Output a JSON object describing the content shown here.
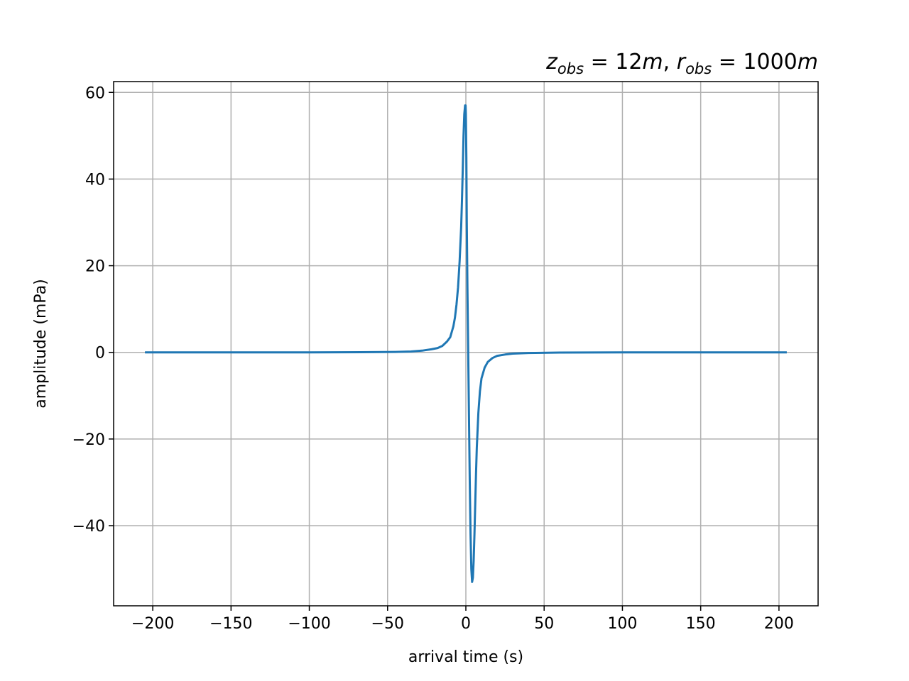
{
  "chart_data": {
    "type": "line",
    "title": {
      "parts": [
        {
          "text": "z",
          "italic": true
        },
        {
          "text": "obs",
          "italic": true,
          "sub": true
        },
        {
          "text": " = 12",
          "italic": false
        },
        {
          "text": "m",
          "italic": true
        },
        {
          "text": ", ",
          "italic": false
        },
        {
          "text": "r",
          "italic": true
        },
        {
          "text": "obs",
          "italic": true,
          "sub": true
        },
        {
          "text": " = 1000",
          "italic": false
        },
        {
          "text": "m",
          "italic": true
        }
      ]
    },
    "xlabel": "arrival time (s)",
    "ylabel": "amplitude (mPa)",
    "xlim": [
      -225,
      225
    ],
    "ylim": [
      -58.5,
      62.5
    ],
    "xticks": [
      -200,
      -150,
      -100,
      -50,
      0,
      50,
      100,
      150,
      200
    ],
    "xtick_labels": [
      "−200",
      "−150",
      "−100",
      "−50",
      "0",
      "50",
      "100",
      "150",
      "200"
    ],
    "yticks": [
      -40,
      -20,
      0,
      20,
      40,
      60
    ],
    "ytick_labels": [
      "−40",
      "−20",
      "0",
      "20",
      "40",
      "60"
    ],
    "grid": true,
    "line_color": "#1f77b4",
    "series": [
      {
        "x": [
          -205,
          -150,
          -100,
          -60,
          -45,
          -35,
          -28,
          -22,
          -18,
          -15,
          -12,
          -10,
          -8,
          -7,
          -6,
          -5,
          -4,
          -3,
          -2.5,
          -2,
          -1.5,
          -1,
          -0.5,
          -0.2,
          0,
          0.3,
          0.6,
          1,
          1.5,
          2,
          2.5,
          3,
          3.5,
          4,
          4.5,
          5,
          5.5,
          6,
          6.5,
          7,
          8,
          9,
          10,
          12,
          14,
          17,
          20,
          25,
          30,
          40,
          60,
          100,
          150,
          205
        ],
        "y": [
          0,
          0,
          0,
          0.05,
          0.1,
          0.2,
          0.4,
          0.7,
          1.0,
          1.5,
          2.5,
          3.5,
          6,
          8,
          11,
          15,
          21,
          29,
          35,
          42,
          50,
          55,
          57,
          57,
          55,
          45,
          30,
          15,
          0,
          -15,
          -30,
          -42,
          -50,
          -53,
          -52,
          -48,
          -42,
          -35,
          -28,
          -22,
          -14,
          -9,
          -6,
          -3.5,
          -2.2,
          -1.3,
          -0.8,
          -0.5,
          -0.3,
          -0.15,
          -0.05,
          0,
          0,
          0
        ]
      }
    ]
  }
}
